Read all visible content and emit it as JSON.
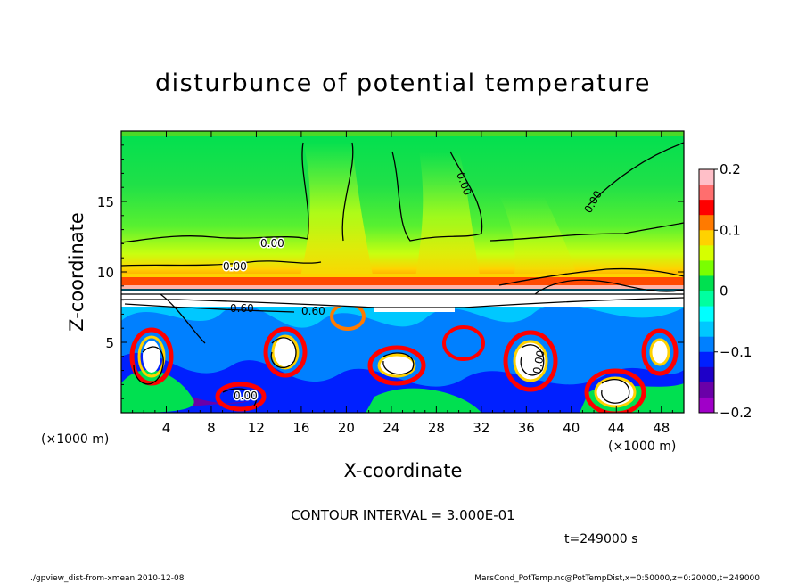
{
  "chart_data": {
    "type": "heatmap",
    "title": "disturbunce of potential temperature",
    "xlabel": "X-coordinate",
    "ylabel": "Z-coordinate",
    "x_unit": "(×1000 m)",
    "y_unit": "(×1000 m)",
    "xlim": [
      0,
      50
    ],
    "ylim": [
      0,
      20
    ],
    "x_ticks": [
      4,
      8,
      12,
      16,
      20,
      24,
      28,
      32,
      36,
      40,
      44,
      48
    ],
    "y_ticks": [
      5,
      10,
      15
    ],
    "colorbar": {
      "min": -0.2,
      "max": 0.2,
      "ticks": [
        0.2,
        0.1,
        0,
        -0.1,
        -0.2
      ],
      "tick_labels": [
        "0.2",
        "0.1",
        "0",
        "−0.1",
        "−0.2"
      ],
      "colors": [
        "#ffbfc8",
        "#ff6e6e",
        "#ff0000",
        "#ff7a00",
        "#ffd200",
        "#d6ff00",
        "#7aff00",
        "#00e050",
        "#00ffa0",
        "#00ffff",
        "#00c8ff",
        "#0080ff",
        "#0020ff",
        "#1e00c8",
        "#6a00a8",
        "#a000c8"
      ]
    },
    "contour_labels": [
      "0.00",
      "0.00",
      "0.00",
      "0.00",
      "0.60",
      "0.60",
      "0.00",
      "0.00"
    ],
    "contour_interval_text": "CONTOUR INTERVAL = 3.000E-01",
    "time_text": "t=249000 s"
  },
  "footer": {
    "left": "./gpview_dist-from-xmean  2010-12-08",
    "right": "MarsCond_PotTemp.nc@PotTempDist,x=0:50000,z=0:20000,t=249000"
  }
}
